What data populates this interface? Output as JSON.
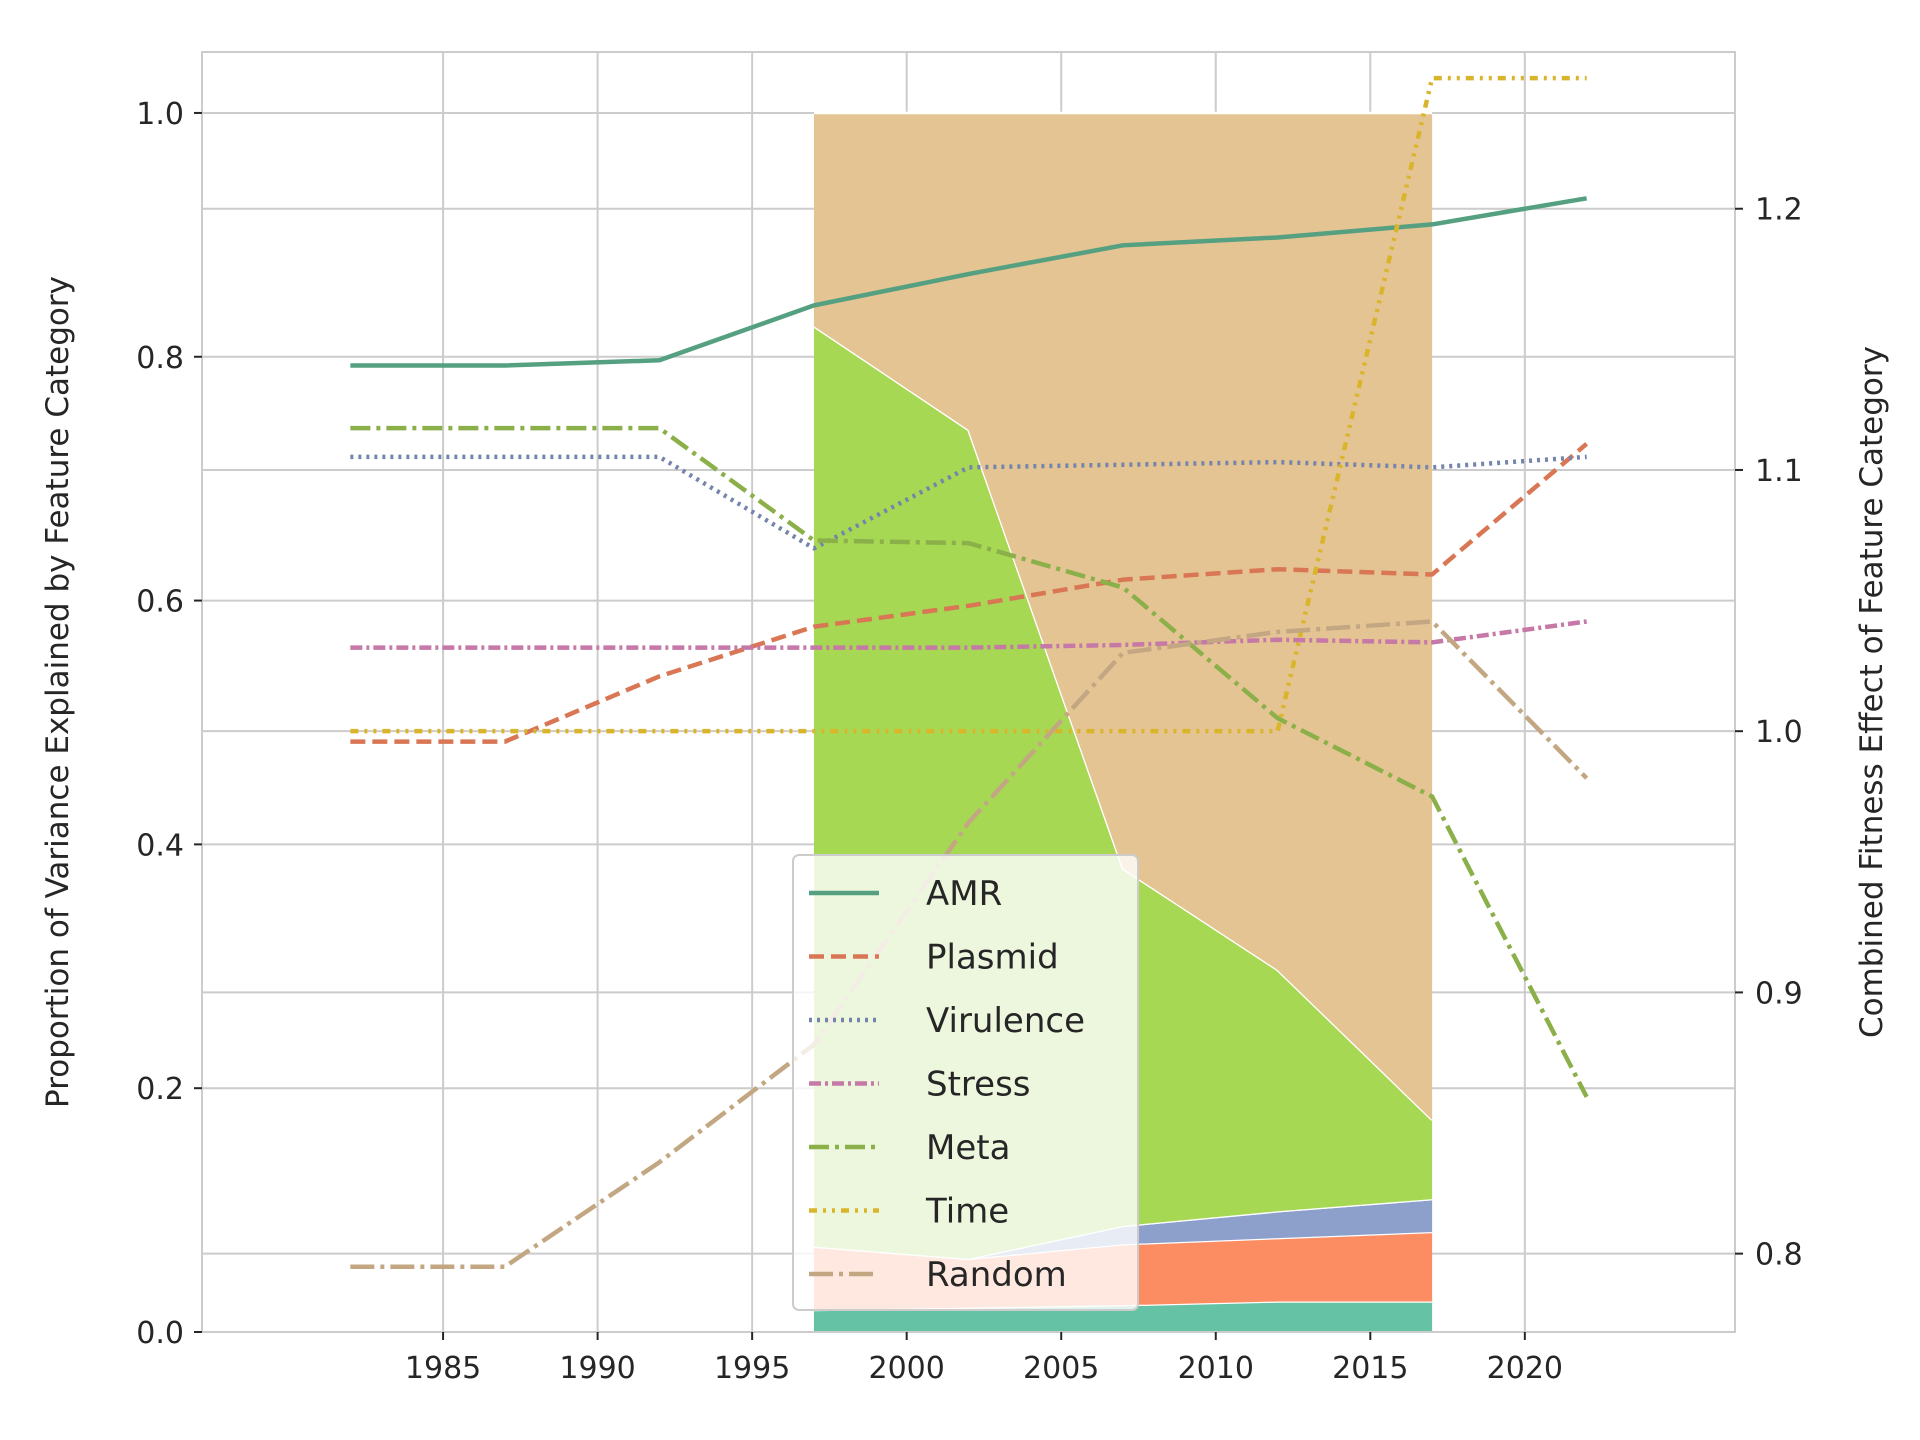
{
  "chart_data": {
    "type": "line",
    "title": "",
    "x_ticks": [
      1985,
      1990,
      1995,
      2000,
      2005,
      2010,
      2015,
      2020
    ],
    "xlim": [
      1977.2,
      2026.8
    ],
    "ylim_left": [
      0.0,
      1.05
    ],
    "ylim_right": [
      0.77,
      1.26
    ],
    "y_ticks_left": [
      "0.0",
      "0.2",
      "0.4",
      "0.6",
      "0.8",
      "1.0"
    ],
    "y_ticks_right": [
      "0.8",
      "0.9",
      "1.0",
      "1.1",
      "1.2"
    ],
    "ylabel_left": "Proportion of Variance Explained by Feature Category",
    "ylabel_right": "Combined Fitness Effect of Feature Category",
    "grid": true,
    "legend_position": "lower-center",
    "area": {
      "x": [
        1997,
        2002,
        2007,
        2012,
        2017
      ],
      "stacks": [
        {
          "color": "#66c2a5",
          "values": [
            0.018,
            0.02,
            0.022,
            0.025,
            0.025
          ]
        },
        {
          "color": "#fc8d62",
          "values": [
            0.052,
            0.04,
            0.05,
            0.052,
            0.057
          ]
        },
        {
          "color": "#8da0cb",
          "values": [
            0.0,
            0.0,
            0.015,
            0.022,
            0.027
          ]
        },
        {
          "color": "#e78ac3",
          "values": [
            0.0,
            0.0,
            0.0,
            0.0,
            0.0
          ]
        },
        {
          "color": "#a6d854",
          "values": [
            0.755,
            0.68,
            0.293,
            0.198,
            0.065
          ]
        },
        {
          "color": "#ffd92f",
          "values": [
            0.0,
            0.0,
            0.0,
            0.0,
            0.0
          ]
        },
        {
          "color": "#e5c494",
          "values": [
            0.175,
            0.26,
            0.62,
            0.703,
            0.826
          ]
        }
      ]
    },
    "series": [
      {
        "name": "AMR",
        "color": "#55a081",
        "dash": "solid",
        "x": [
          1982,
          1987,
          1992,
          1997,
          2002,
          2007,
          2012,
          2017,
          2022
        ],
        "values": [
          1.14,
          1.14,
          1.142,
          1.163,
          1.175,
          1.186,
          1.189,
          1.194,
          1.204
        ]
      },
      {
        "name": "Plasmid",
        "color": "#d97654",
        "dash": "dashed",
        "x": [
          1982,
          1987,
          1992,
          1997,
          2002,
          2007,
          2012,
          2017,
          2022
        ],
        "values": [
          0.996,
          0.996,
          1.021,
          1.04,
          1.048,
          1.058,
          1.062,
          1.06,
          1.11
        ]
      },
      {
        "name": "Virulence",
        "color": "#7584ab",
        "dash": "dotted",
        "x": [
          1982,
          1987,
          1992,
          1997,
          2002,
          2007,
          2012,
          2017,
          2022
        ],
        "values": [
          1.105,
          1.105,
          1.105,
          1.07,
          1.101,
          1.102,
          1.103,
          1.101,
          1.105
        ]
      },
      {
        "name": "Stress",
        "color": "#c678a7",
        "dash": "dashdot-dense",
        "x": [
          1982,
          1987,
          1992,
          1997,
          2002,
          2007,
          2012,
          2017,
          2022
        ],
        "values": [
          1.032,
          1.032,
          1.032,
          1.032,
          1.032,
          1.033,
          1.035,
          1.034,
          1.042
        ]
      },
      {
        "name": "Meta",
        "color": "#8bb04a",
        "dash": "dashdot",
        "x": [
          1982,
          1987,
          1992,
          1997,
          2002,
          2007,
          2012,
          2017,
          2022
        ],
        "values": [
          1.116,
          1.116,
          1.116,
          1.073,
          1.072,
          1.055,
          1.005,
          0.975,
          0.86
        ]
      },
      {
        "name": "Time",
        "color": "#d9b52b",
        "dash": "dashdotdot",
        "x": [
          1982,
          1987,
          1992,
          1997,
          2002,
          2007,
          2012,
          2017,
          2022
        ],
        "values": [
          1.0,
          1.0,
          1.0,
          1.0,
          1.0,
          1.0,
          1.0,
          1.25,
          1.25
        ]
      },
      {
        "name": "Random",
        "color": "#c2a782",
        "dash": "longdashdot",
        "x": [
          1982,
          1987,
          1992,
          1997,
          2002,
          2007,
          2012,
          2017,
          2022
        ],
        "values": [
          0.795,
          0.795,
          0.835,
          0.88,
          0.965,
          1.03,
          1.038,
          1.042,
          0.982
        ]
      }
    ]
  }
}
